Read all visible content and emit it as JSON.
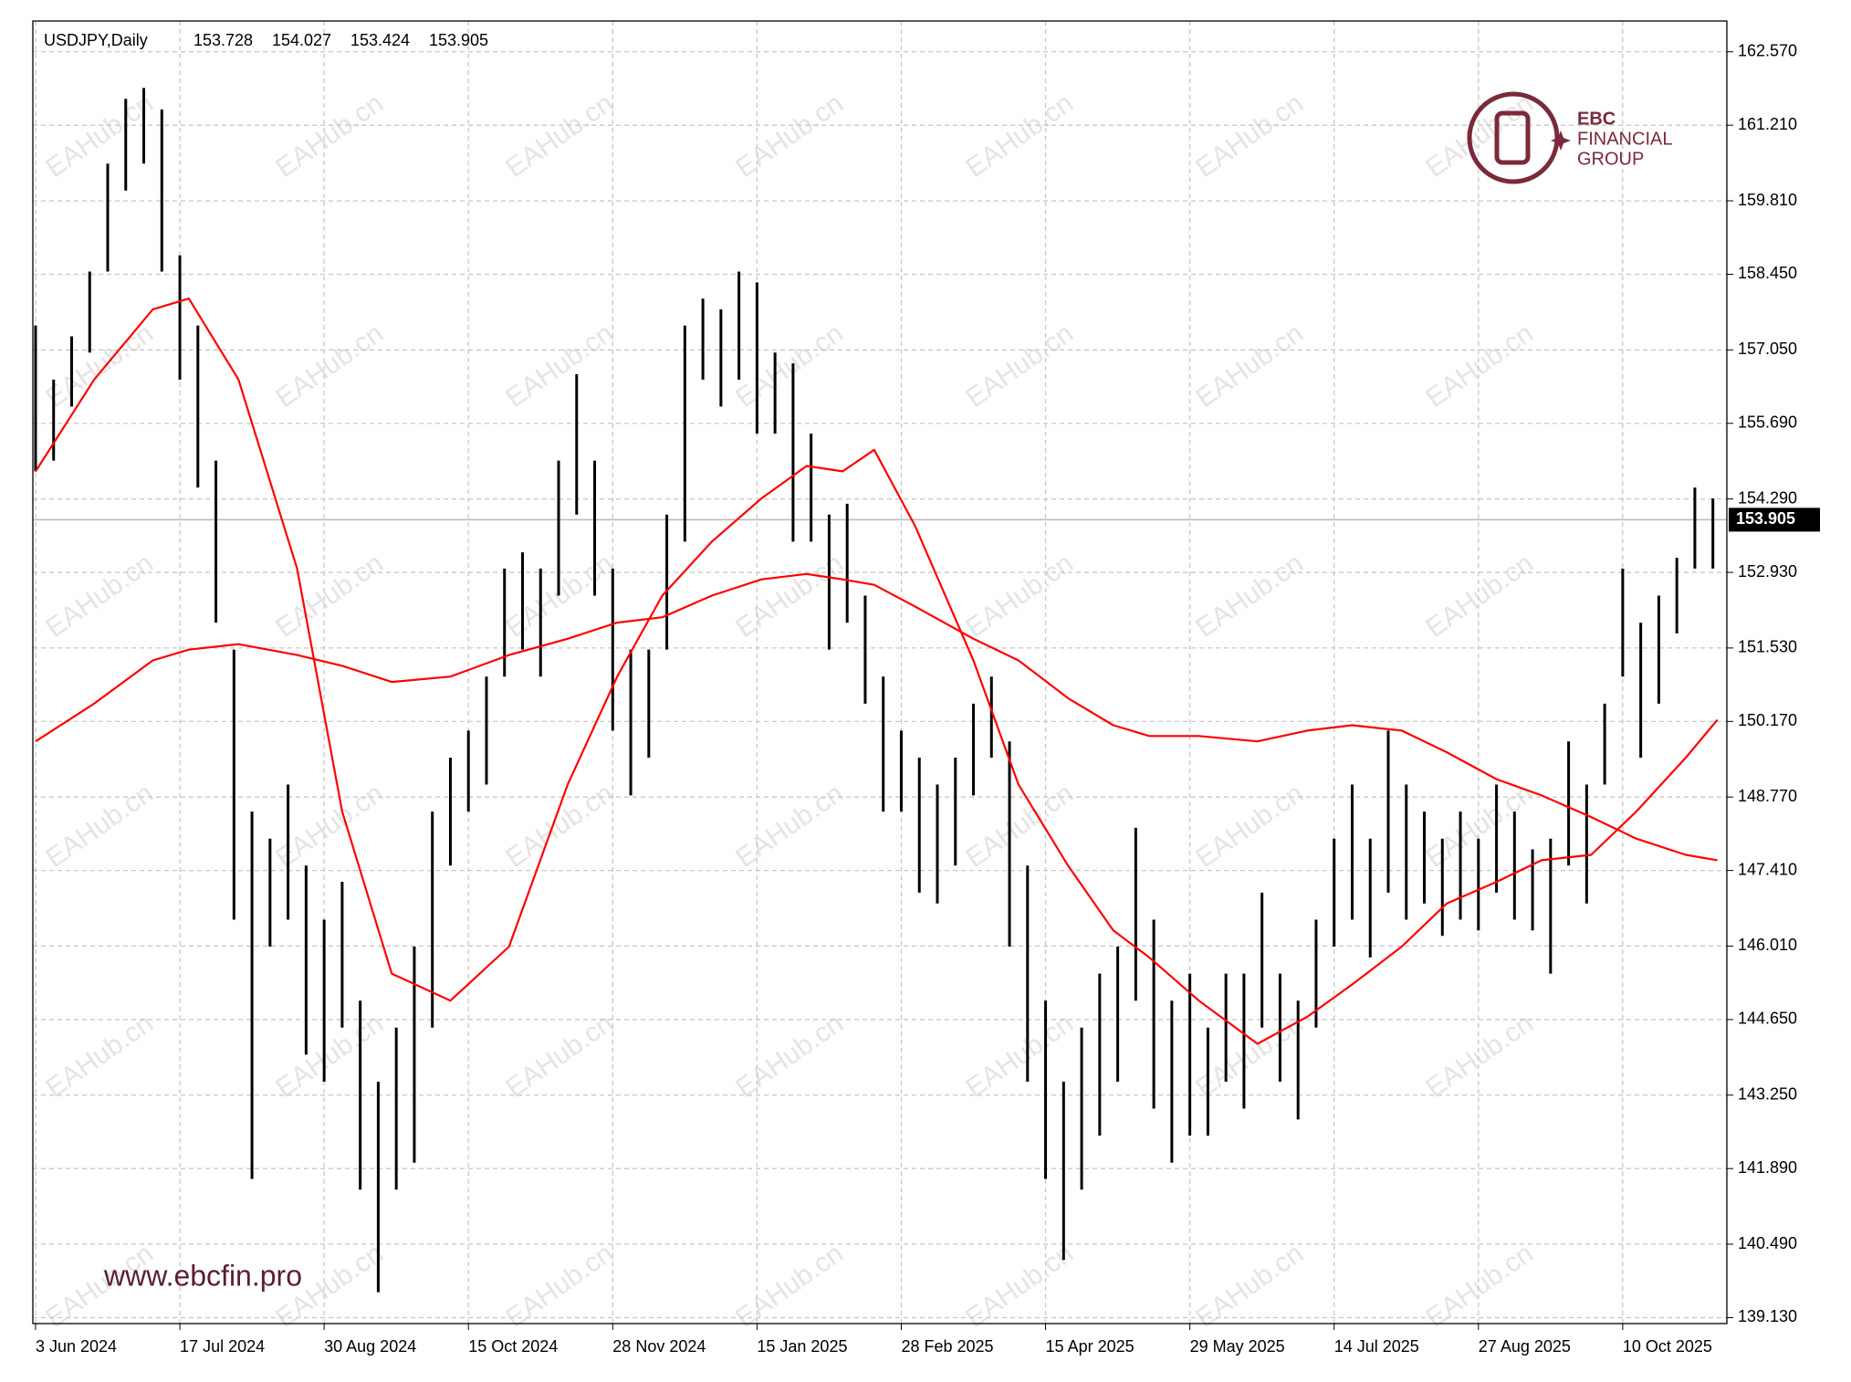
{
  "chart_data": {
    "type": "ohlc",
    "header": {
      "symbol": "USDJPY,Daily",
      "open": 153.728,
      "high": 154.027,
      "low": 153.424,
      "close": 153.905
    },
    "current_price": 153.905,
    "bar_color": "#000000",
    "grid": true,
    "ylim": [
      139.02,
      163.14
    ],
    "yticks": [
      {
        "value": 162.57,
        "label": "162.570"
      },
      {
        "value": 161.21,
        "label": "161.210"
      },
      {
        "value": 159.81,
        "label": "159.810"
      },
      {
        "value": 158.45,
        "label": "158.450"
      },
      {
        "value": 157.05,
        "label": "157.050"
      },
      {
        "value": 155.69,
        "label": "155.690"
      },
      {
        "value": 154.29,
        "label": "154.290"
      },
      {
        "value": 152.93,
        "label": "152.930"
      },
      {
        "value": 151.53,
        "label": "151.530"
      },
      {
        "value": 150.17,
        "label": "150.170"
      },
      {
        "value": 148.77,
        "label": "148.770"
      },
      {
        "value": 147.41,
        "label": "147.410"
      },
      {
        "value": 146.01,
        "label": "146.010"
      },
      {
        "value": 144.65,
        "label": "144.650"
      },
      {
        "value": 143.25,
        "label": "143.250"
      },
      {
        "value": 141.89,
        "label": "141.890"
      },
      {
        "value": 140.49,
        "label": "140.490"
      },
      {
        "value": 139.13,
        "label": "139.130"
      }
    ],
    "xlim": [
      -0.6,
      375.1
    ],
    "xticks": [
      {
        "value": 0,
        "label": "3 Jun 2024"
      },
      {
        "value": 32,
        "label": "17 Jul 2024"
      },
      {
        "value": 64,
        "label": "30 Aug 2024"
      },
      {
        "value": 96,
        "label": "15 Oct 2024"
      },
      {
        "value": 128,
        "label": "28 Nov 2024"
      },
      {
        "value": 160,
        "label": "15 Jan 2025"
      },
      {
        "value": 192,
        "label": "28 Feb 2025"
      },
      {
        "value": 224,
        "label": "15 Apr 2025"
      },
      {
        "value": 256,
        "label": "29 May 2025"
      },
      {
        "value": 288,
        "label": "14 Jul 2025"
      },
      {
        "value": 320,
        "label": "27 Aug 2025"
      },
      {
        "value": 352,
        "label": "10 Oct 2025"
      }
    ],
    "bars": {
      "x": [
        0,
        4,
        8,
        12,
        16,
        20,
        24,
        28,
        32,
        36,
        40,
        44,
        48,
        52,
        56,
        60,
        64,
        68,
        72,
        76,
        80,
        84,
        88,
        92,
        96,
        100,
        104,
        108,
        112,
        116,
        120,
        124,
        128,
        132,
        136,
        140,
        144,
        148,
        152,
        156,
        160,
        164,
        168,
        172,
        176,
        180,
        184,
        188,
        192,
        196,
        200,
        204,
        208,
        212,
        216,
        220,
        224,
        228,
        232,
        236,
        240,
        244,
        248,
        252,
        256,
        260,
        264,
        268,
        272,
        276,
        280,
        284,
        288,
        292,
        296,
        300,
        304,
        308,
        312,
        316,
        320,
        324,
        328,
        332,
        336,
        340,
        344,
        348,
        352,
        356,
        360,
        364,
        368,
        372
      ],
      "high": [
        157.5,
        156.5,
        157.3,
        158.5,
        160.5,
        161.7,
        161.9,
        161.5,
        158.8,
        157.5,
        155.0,
        151.5,
        148.5,
        148.0,
        149.0,
        147.5,
        146.5,
        147.2,
        145.0,
        143.5,
        144.5,
        146.0,
        148.5,
        149.5,
        150.0,
        151.0,
        153.0,
        153.3,
        153.0,
        155.0,
        156.6,
        155.0,
        153.0,
        151.5,
        151.5,
        154.0,
        157.5,
        158.0,
        157.8,
        158.5,
        158.3,
        157.0,
        156.8,
        155.5,
        154.0,
        154.2,
        152.5,
        151.0,
        150.0,
        149.5,
        149.0,
        149.5,
        150.5,
        151.0,
        149.8,
        147.5,
        145.0,
        143.5,
        144.5,
        145.5,
        146.0,
        148.2,
        146.5,
        145.0,
        145.5,
        144.5,
        145.5,
        145.5,
        147.0,
        145.5,
        145.0,
        146.5,
        148.0,
        149.0,
        148.0,
        150.0,
        149.0,
        148.5,
        148.0,
        148.5,
        148.0,
        149.0,
        148.5,
        147.8,
        148.0,
        149.8,
        149.0,
        150.5,
        153.0,
        152.0,
        152.5,
        153.2,
        154.5,
        154.3
      ],
      "low": [
        154.8,
        155.0,
        156.0,
        157.0,
        158.5,
        160.0,
        160.5,
        158.5,
        156.5,
        154.5,
        152.0,
        146.5,
        141.7,
        146.0,
        146.5,
        144.0,
        143.5,
        144.5,
        141.5,
        139.6,
        141.5,
        142.0,
        144.5,
        147.5,
        148.5,
        149.0,
        151.0,
        151.5,
        151.0,
        152.5,
        154.0,
        152.5,
        150.0,
        148.8,
        149.5,
        151.5,
        153.5,
        156.5,
        156.0,
        156.5,
        155.5,
        155.5,
        153.5,
        153.5,
        151.5,
        152.0,
        150.5,
        148.5,
        148.5,
        147.0,
        146.8,
        147.5,
        148.8,
        149.5,
        146.0,
        143.5,
        141.7,
        140.2,
        141.5,
        142.5,
        143.5,
        145.0,
        143.0,
        142.0,
        142.5,
        142.5,
        143.5,
        143.0,
        144.5,
        143.5,
        142.8,
        144.5,
        146.0,
        146.5,
        145.8,
        147.0,
        146.5,
        146.8,
        146.2,
        146.5,
        146.3,
        147.0,
        146.5,
        146.3,
        145.5,
        147.5,
        146.8,
        149.0,
        151.0,
        149.5,
        150.5,
        151.8,
        153.0,
        153.0
      ]
    },
    "series": [
      {
        "color": "#ff0000",
        "x": [
          0,
          13,
          26,
          34,
          45,
          58,
          68,
          79,
          92,
          105,
          118,
          129,
          139,
          150,
          161,
          171,
          179,
          186,
          195,
          208,
          218,
          229,
          239,
          247,
          258,
          271,
          282,
          292,
          303,
          313,
          324,
          334,
          345,
          355,
          366,
          373
        ],
        "values": [
          154.8,
          156.5,
          157.8,
          158.0,
          156.5,
          153.0,
          148.5,
          145.5,
          145.0,
          146.0,
          149.0,
          151.0,
          152.5,
          153.5,
          154.3,
          154.9,
          154.8,
          155.2,
          153.8,
          151.3,
          149.0,
          147.5,
          146.3,
          145.8,
          145.0,
          144.2,
          144.7,
          145.3,
          146.0,
          146.8,
          147.2,
          147.6,
          147.7,
          148.5,
          149.5,
          150.2
        ]
      },
      {
        "color": "#ff0000",
        "x": [
          0,
          13,
          26,
          34,
          45,
          58,
          68,
          79,
          92,
          105,
          118,
          129,
          139,
          150,
          161,
          171,
          179,
          186,
          195,
          208,
          218,
          229,
          239,
          247,
          258,
          271,
          282,
          292,
          303,
          313,
          324,
          334,
          345,
          355,
          366,
          373
        ],
        "values": [
          149.8,
          150.5,
          151.3,
          151.5,
          151.6,
          151.4,
          151.2,
          150.9,
          151.0,
          151.4,
          151.7,
          152.0,
          152.1,
          152.5,
          152.8,
          152.9,
          152.8,
          152.7,
          152.3,
          151.7,
          151.3,
          150.6,
          150.1,
          149.9,
          149.9,
          149.8,
          150.0,
          150.1,
          150.0,
          149.6,
          149.1,
          148.8,
          148.4,
          148.0,
          147.7,
          147.6
        ]
      }
    ]
  },
  "logo": {
    "line1": "EBC",
    "line2": "FINANCIAL",
    "line3": "GROUP"
  },
  "website": "www.ebcfin.pro",
  "watermark": "EAHub.cn"
}
